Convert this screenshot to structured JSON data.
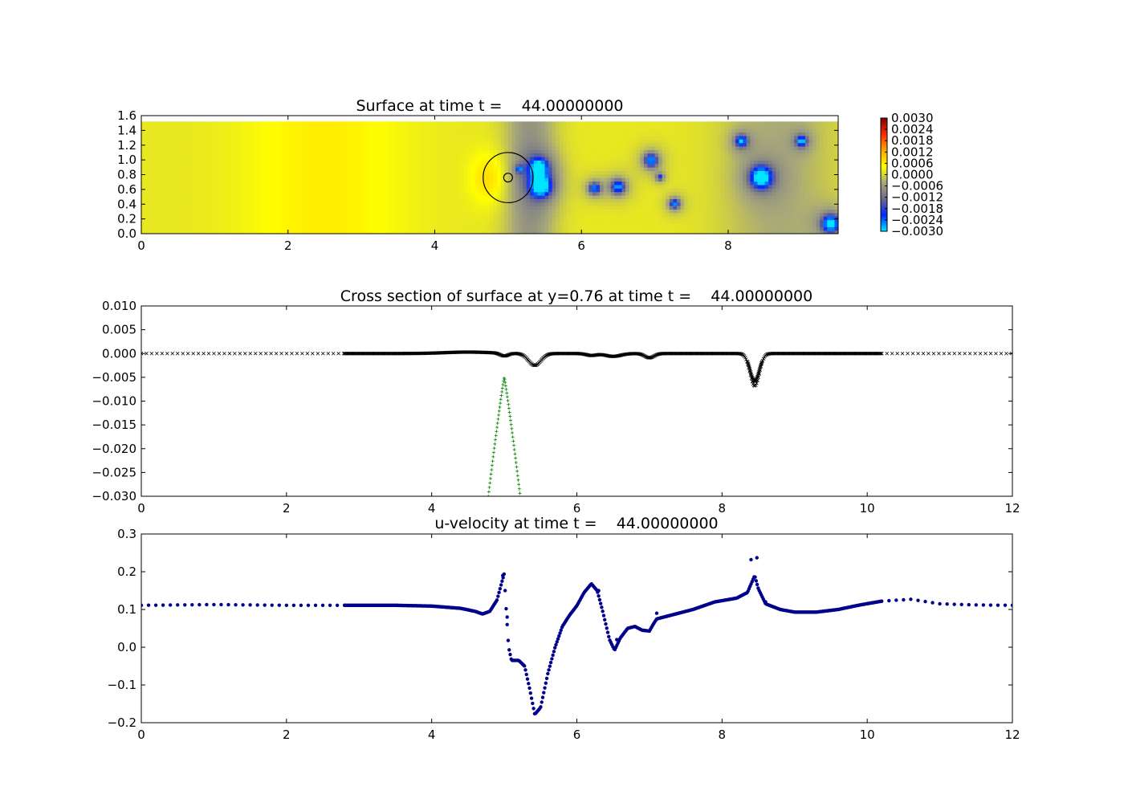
{
  "figure": {
    "background": "#ffffff"
  },
  "chart_data": [
    {
      "type": "heatmap",
      "title": "Surface at time t =    44.00000000",
      "xlabel": "",
      "ylabel": "",
      "xlim": [
        0,
        9.5
      ],
      "ylim": [
        0,
        1.6
      ],
      "xticks": [
        0,
        2,
        4,
        6,
        8
      ],
      "yticks": [
        "0.0",
        "0.2",
        "0.4",
        "0.6",
        "0.8",
        "1.0",
        "1.2",
        "1.4",
        "1.6"
      ],
      "domain_top": 1.52,
      "colorbar": {
        "min": -0.003,
        "max": 0.003,
        "ticks": [
          "0.0030",
          "0.0024",
          "0.0018",
          "0.0012",
          "0.0006",
          "0.0000",
          "−0.0006",
          "−0.0012",
          "−0.0018",
          "−0.0024",
          "−0.0030"
        ],
        "colors": [
          "#00e5ff",
          "#0028ff",
          "#6b6b8f",
          "#a8a87a",
          "#ffff00",
          "#ffa500",
          "#ff2a00",
          "#7f0000"
        ]
      },
      "background_value": 0.0002,
      "depressions": [
        {
          "x": 5.42,
          "y": 0.9,
          "r": 0.14,
          "value": -0.0025
        },
        {
          "x": 5.45,
          "y": 0.65,
          "r": 0.16,
          "value": -0.0028
        },
        {
          "x": 5.15,
          "y": 0.88,
          "r": 0.04,
          "value": -0.0018
        },
        {
          "x": 6.18,
          "y": 0.62,
          "r": 0.09,
          "value": -0.0022
        },
        {
          "x": 6.5,
          "y": 0.64,
          "r": 0.11,
          "value": -0.0024
        },
        {
          "x": 6.95,
          "y": 1.0,
          "r": 0.11,
          "value": -0.0024
        },
        {
          "x": 7.07,
          "y": 0.77,
          "r": 0.05,
          "value": -0.0016
        },
        {
          "x": 7.27,
          "y": 0.41,
          "r": 0.08,
          "value": -0.0022
        },
        {
          "x": 8.18,
          "y": 1.26,
          "r": 0.09,
          "value": -0.0022
        },
        {
          "x": 8.45,
          "y": 0.77,
          "r": 0.17,
          "value": -0.0029
        },
        {
          "x": 9.0,
          "y": 1.26,
          "r": 0.08,
          "value": -0.0022
        },
        {
          "x": 9.4,
          "y": 0.14,
          "r": 0.14,
          "value": -0.0028
        }
      ],
      "circle": {
        "x": 5.0,
        "y": 0.76,
        "r": 0.34
      },
      "inner_circle": {
        "x": 5.0,
        "y": 0.76,
        "r": 0.06
      }
    },
    {
      "type": "scatter",
      "title": "Cross section of surface at y=0.76 at time t =    44.00000000",
      "xlabel": "",
      "ylabel": "",
      "xlim": [
        0,
        12
      ],
      "ylim": [
        -0.03,
        0.01
      ],
      "xticks": [
        0,
        2,
        4,
        6,
        8,
        10,
        12
      ],
      "yticks": [
        "0.010",
        "0.005",
        "0.000",
        "−0.005",
        "−0.010",
        "−0.015",
        "−0.020",
        "−0.025",
        "−0.030"
      ],
      "series": [
        {
          "marker": "x",
          "color": "#000000",
          "sparse_x_ranges": [
            [
              0,
              2.8
            ],
            [
              10.2,
              12
            ]
          ],
          "dense_x_range": [
            2.8,
            10.2
          ],
          "baseline": 0.0,
          "features": [
            {
              "x": 4.5,
              "depth": -0.0003,
              "width": 0.45,
              "sign": 1
            },
            {
              "x": 5.0,
              "depth": -0.0006,
              "width": 0.08,
              "sign": 1
            },
            {
              "x": 5.42,
              "depth": -0.0025,
              "width": 0.12,
              "sign": 1
            },
            {
              "x": 6.2,
              "depth": -0.0004,
              "width": 0.1,
              "sign": 1
            },
            {
              "x": 6.5,
              "depth": -0.0006,
              "width": 0.15,
              "sign": 1
            },
            {
              "x": 7.0,
              "depth": -0.0009,
              "width": 0.09,
              "sign": 1
            },
            {
              "x": 8.45,
              "depth": -0.0068,
              "width": 0.09,
              "sign": 1
            }
          ]
        },
        {
          "marker": "+",
          "color": "#008000",
          "x_range": [
            4.78,
            5.22
          ],
          "peak_x": 5.0,
          "peak_y": -0.005,
          "edge_y": -0.03
        }
      ]
    },
    {
      "type": "scatter",
      "title": "u-velocity at time t =    44.00000000",
      "xlabel": "",
      "ylabel": "",
      "xlim": [
        0,
        12
      ],
      "ylim": [
        -0.2,
        0.3
      ],
      "xticks": [
        0,
        2,
        4,
        6,
        8,
        10,
        12
      ],
      "yticks": [
        "0.3",
        "0.2",
        "0.1",
        "0.0",
        "−0.1",
        "−0.2"
      ],
      "series": [
        {
          "marker": "o",
          "color": "#00008b",
          "sparse_x_ranges": [
            [
              0,
              2.8
            ],
            [
              10.2,
              12
            ]
          ],
          "dense_x_range": [
            2.8,
            10.2
          ],
          "points": [
            [
              0,
              0.111
            ],
            [
              1.0,
              0.113
            ],
            [
              2.0,
              0.111
            ],
            [
              2.8,
              0.111
            ],
            [
              3.5,
              0.111
            ],
            [
              4.0,
              0.109
            ],
            [
              4.4,
              0.103
            ],
            [
              4.6,
              0.095
            ],
            [
              4.7,
              0.088
            ],
            [
              4.8,
              0.095
            ],
            [
              4.9,
              0.125
            ],
            [
              4.97,
              0.175
            ],
            [
              5.0,
              0.195
            ],
            [
              5.02,
              0.12
            ],
            [
              5.06,
              0.0
            ],
            [
              5.1,
              -0.035
            ],
            [
              5.2,
              -0.035
            ],
            [
              5.28,
              -0.05
            ],
            [
              5.35,
              -0.11
            ],
            [
              5.42,
              -0.178
            ],
            [
              5.5,
              -0.16
            ],
            [
              5.6,
              -0.07
            ],
            [
              5.7,
              0.0
            ],
            [
              5.8,
              0.055
            ],
            [
              5.9,
              0.085
            ],
            [
              6.0,
              0.11
            ],
            [
              6.1,
              0.145
            ],
            [
              6.2,
              0.168
            ],
            [
              6.28,
              0.15
            ],
            [
              6.35,
              0.1
            ],
            [
              6.45,
              0.02
            ],
            [
              6.52,
              -0.008
            ],
            [
              6.6,
              0.025
            ],
            [
              6.7,
              0.05
            ],
            [
              6.8,
              0.055
            ],
            [
              6.9,
              0.045
            ],
            [
              7.0,
              0.043
            ],
            [
              7.05,
              0.06
            ],
            [
              7.1,
              0.075
            ],
            [
              7.3,
              0.085
            ],
            [
              7.6,
              0.1
            ],
            [
              7.9,
              0.12
            ],
            [
              8.2,
              0.13
            ],
            [
              8.35,
              0.145
            ],
            [
              8.45,
              0.19
            ],
            [
              8.5,
              0.155
            ],
            [
              8.6,
              0.115
            ],
            [
              8.8,
              0.1
            ],
            [
              9.0,
              0.093
            ],
            [
              9.3,
              0.093
            ],
            [
              9.6,
              0.1
            ],
            [
              9.9,
              0.112
            ],
            [
              10.2,
              0.122
            ],
            [
              10.6,
              0.127
            ],
            [
              11.0,
              0.115
            ],
            [
              11.5,
              0.112
            ],
            [
              12.0,
              0.111
            ]
          ],
          "outliers": [
            [
              4.98,
              0.19
            ],
            [
              5.04,
              0.08
            ],
            [
              6.3,
              0.15
            ],
            [
              6.55,
              0.02
            ],
            [
              7.1,
              0.09
            ],
            [
              8.4,
              0.232
            ],
            [
              8.48,
              0.237
            ],
            [
              8.6,
              0.12
            ]
          ]
        }
      ]
    }
  ]
}
